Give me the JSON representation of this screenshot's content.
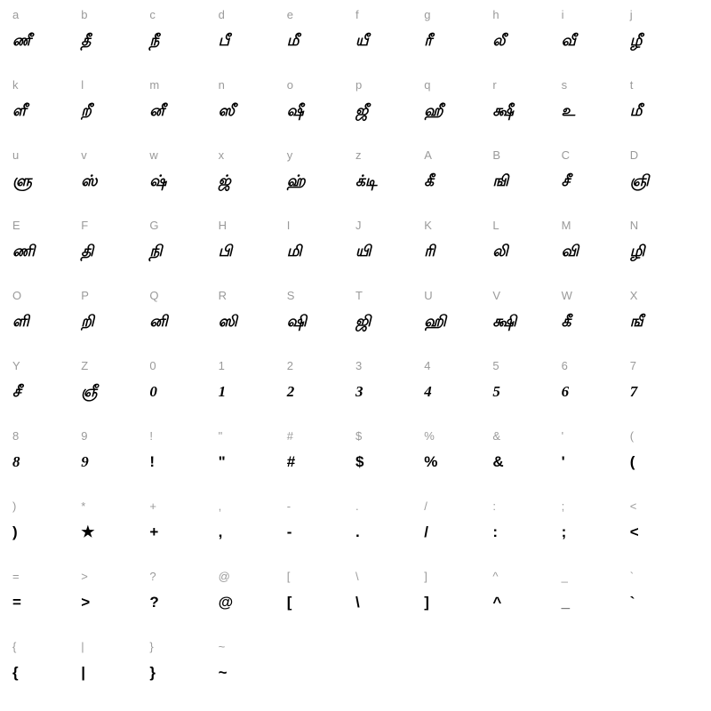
{
  "chart": {
    "type": "font-glyph-table",
    "columns": 10,
    "rows": 10,
    "background_color": "#ffffff",
    "key_color": "#9a9a9a",
    "key_fontsize": 13,
    "glyph_color": "#000000",
    "glyph_fontsize": 17,
    "cells": [
      {
        "key": "a",
        "glyph": "ணீ",
        "plain": false
      },
      {
        "key": "b",
        "glyph": "தீ",
        "plain": false
      },
      {
        "key": "c",
        "glyph": "நீ",
        "plain": false
      },
      {
        "key": "d",
        "glyph": "பீ",
        "plain": false
      },
      {
        "key": "e",
        "glyph": "மீ",
        "plain": false
      },
      {
        "key": "f",
        "glyph": "யீ",
        "plain": false
      },
      {
        "key": "g",
        "glyph": "ரீ",
        "plain": false
      },
      {
        "key": "h",
        "glyph": "லீ",
        "plain": false
      },
      {
        "key": "i",
        "glyph": "வீ",
        "plain": false
      },
      {
        "key": "j",
        "glyph": "ழீ",
        "plain": false
      },
      {
        "key": "k",
        "glyph": "ளீ",
        "plain": false
      },
      {
        "key": "l",
        "glyph": "றீ",
        "plain": false
      },
      {
        "key": "m",
        "glyph": "னீ",
        "plain": false
      },
      {
        "key": "n",
        "glyph": "ஸீ",
        "plain": false
      },
      {
        "key": "o",
        "glyph": "ஷீ",
        "plain": false
      },
      {
        "key": "p",
        "glyph": "ஜீ",
        "plain": false
      },
      {
        "key": "q",
        "glyph": "ஹீ",
        "plain": false
      },
      {
        "key": "r",
        "glyph": "க்ஷீ",
        "plain": false
      },
      {
        "key": "s",
        "glyph": "உ",
        "plain": false
      },
      {
        "key": "t",
        "glyph": "மீ",
        "plain": false
      },
      {
        "key": "u",
        "glyph": "ளு",
        "plain": false
      },
      {
        "key": "v",
        "glyph": "ஸ்",
        "plain": false
      },
      {
        "key": "w",
        "glyph": "ஷ்",
        "plain": false
      },
      {
        "key": "x",
        "glyph": "ஜ்",
        "plain": false
      },
      {
        "key": "y",
        "glyph": "ஹ்",
        "plain": false
      },
      {
        "key": "z",
        "glyph": "க்டி",
        "plain": false
      },
      {
        "key": "A",
        "glyph": "கீ",
        "plain": false
      },
      {
        "key": "B",
        "glyph": "ஙி",
        "plain": false
      },
      {
        "key": "C",
        "glyph": "சீ",
        "plain": false
      },
      {
        "key": "D",
        "glyph": "ஞி",
        "plain": false
      },
      {
        "key": "E",
        "glyph": "ணி",
        "plain": false
      },
      {
        "key": "F",
        "glyph": "தி",
        "plain": false
      },
      {
        "key": "G",
        "glyph": "நி",
        "plain": false
      },
      {
        "key": "H",
        "glyph": "பி",
        "plain": false
      },
      {
        "key": "I",
        "glyph": "மி",
        "plain": false
      },
      {
        "key": "J",
        "glyph": "யி",
        "plain": false
      },
      {
        "key": "K",
        "glyph": "ரி",
        "plain": false
      },
      {
        "key": "L",
        "glyph": "லி",
        "plain": false
      },
      {
        "key": "M",
        "glyph": "வி",
        "plain": false
      },
      {
        "key": "N",
        "glyph": "ழி",
        "plain": false
      },
      {
        "key": "O",
        "glyph": "ளி",
        "plain": false
      },
      {
        "key": "P",
        "glyph": "றி",
        "plain": false
      },
      {
        "key": "Q",
        "glyph": "னி",
        "plain": false
      },
      {
        "key": "R",
        "glyph": "ஸி",
        "plain": false
      },
      {
        "key": "S",
        "glyph": "ஷி",
        "plain": false
      },
      {
        "key": "T",
        "glyph": "ஜி",
        "plain": false
      },
      {
        "key": "U",
        "glyph": "ஹி",
        "plain": false
      },
      {
        "key": "V",
        "glyph": "க்ஷி",
        "plain": false
      },
      {
        "key": "W",
        "glyph": "கீ",
        "plain": false
      },
      {
        "key": "X",
        "glyph": "ஙீ",
        "plain": false
      },
      {
        "key": "Y",
        "glyph": "சீ",
        "plain": false
      },
      {
        "key": "Z",
        "glyph": "ஞீ",
        "plain": false
      },
      {
        "key": "0",
        "glyph": "0",
        "plain": false
      },
      {
        "key": "1",
        "glyph": "1",
        "plain": false
      },
      {
        "key": "2",
        "glyph": "2",
        "plain": false
      },
      {
        "key": "3",
        "glyph": "3",
        "plain": false
      },
      {
        "key": "4",
        "glyph": "4",
        "plain": false
      },
      {
        "key": "5",
        "glyph": "5",
        "plain": false
      },
      {
        "key": "6",
        "glyph": "6",
        "plain": false
      },
      {
        "key": "7",
        "glyph": "7",
        "plain": false
      },
      {
        "key": "8",
        "glyph": "8",
        "plain": false
      },
      {
        "key": "9",
        "glyph": "9",
        "plain": false
      },
      {
        "key": "!",
        "glyph": "!",
        "plain": true
      },
      {
        "key": "\"",
        "glyph": "\"",
        "plain": true
      },
      {
        "key": "#",
        "glyph": "#",
        "plain": true
      },
      {
        "key": "$",
        "glyph": "$",
        "plain": true
      },
      {
        "key": "%",
        "glyph": "%",
        "plain": true
      },
      {
        "key": "&",
        "glyph": "&",
        "plain": true
      },
      {
        "key": "'",
        "glyph": "'",
        "plain": true
      },
      {
        "key": "(",
        "glyph": "(",
        "plain": true
      },
      {
        "key": ")",
        "glyph": ")",
        "plain": true
      },
      {
        "key": "*",
        "glyph": "★",
        "plain": true
      },
      {
        "key": "+",
        "glyph": "+",
        "plain": true
      },
      {
        "key": ",",
        "glyph": ",",
        "plain": true
      },
      {
        "key": "-",
        "glyph": "-",
        "plain": true
      },
      {
        "key": ".",
        "glyph": ".",
        "plain": true
      },
      {
        "key": "/",
        "glyph": "/",
        "plain": true
      },
      {
        "key": ":",
        "glyph": ":",
        "plain": true
      },
      {
        "key": ";",
        "glyph": ";",
        "plain": true
      },
      {
        "key": "<",
        "glyph": "<",
        "plain": true
      },
      {
        "key": "=",
        "glyph": "=",
        "plain": true
      },
      {
        "key": ">",
        "glyph": ">",
        "plain": true
      },
      {
        "key": "?",
        "glyph": "?",
        "plain": true
      },
      {
        "key": "@",
        "glyph": "@",
        "plain": true
      },
      {
        "key": "[",
        "glyph": "[",
        "plain": true
      },
      {
        "key": "\\",
        "glyph": "\\",
        "plain": true
      },
      {
        "key": "]",
        "glyph": "]",
        "plain": true
      },
      {
        "key": "^",
        "glyph": "^",
        "plain": true
      },
      {
        "key": "_",
        "glyph": "_",
        "plain": true
      },
      {
        "key": "`",
        "glyph": "`",
        "plain": true
      },
      {
        "key": "{",
        "glyph": "{",
        "plain": true
      },
      {
        "key": "|",
        "glyph": "|",
        "plain": true
      },
      {
        "key": "}",
        "glyph": "}",
        "plain": true
      },
      {
        "key": "~",
        "glyph": "~",
        "plain": true
      }
    ]
  }
}
